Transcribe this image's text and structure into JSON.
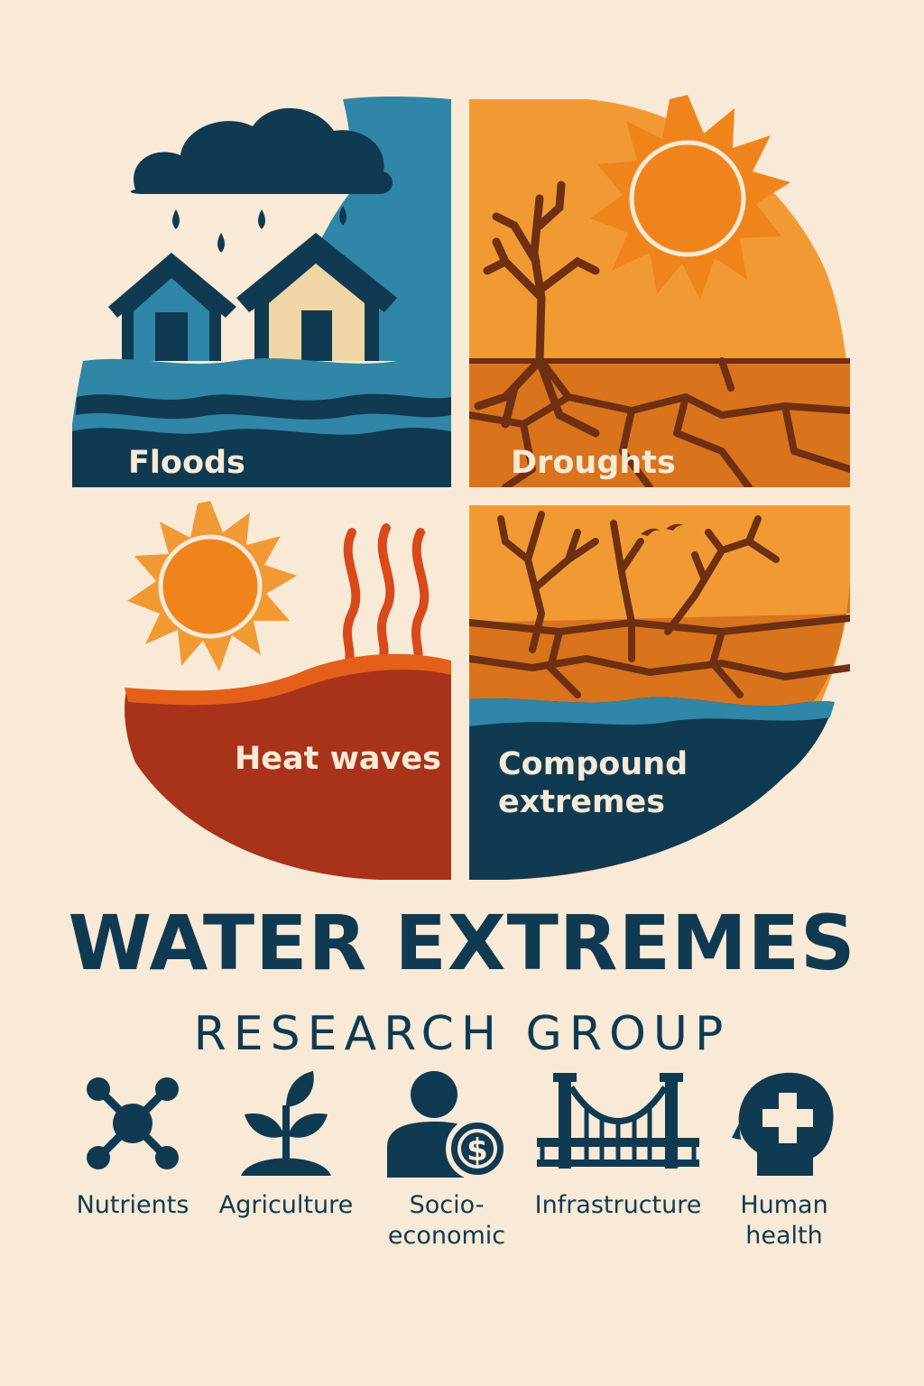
{
  "quadrants": [
    {
      "label": "Floods"
    },
    {
      "label": "Droughts"
    },
    {
      "label": "Heat waves"
    },
    {
      "label": "Compound\nextremes"
    }
  ],
  "title": "WATER EXTREMES",
  "subtitle": "RESEARCH GROUP",
  "topics": [
    {
      "label": "Nutrients",
      "icon": "molecule-icon"
    },
    {
      "label": "Agriculture",
      "icon": "sprout-icon"
    },
    {
      "label": "Socio-\neconomic",
      "icon": "person-dollar-icon"
    },
    {
      "label": "Infrastructure",
      "icon": "bridge-icon"
    },
    {
      "label": "Human\nhealth",
      "icon": "head-cross-icon"
    }
  ],
  "colors": {
    "navy": "#0f3a52",
    "teal": "#2f86a6",
    "orange": "#f19a34",
    "dark_orange": "#d9731c",
    "rust": "#a8331a",
    "cream": "#f8ead6",
    "brown": "#6e2f12"
  }
}
